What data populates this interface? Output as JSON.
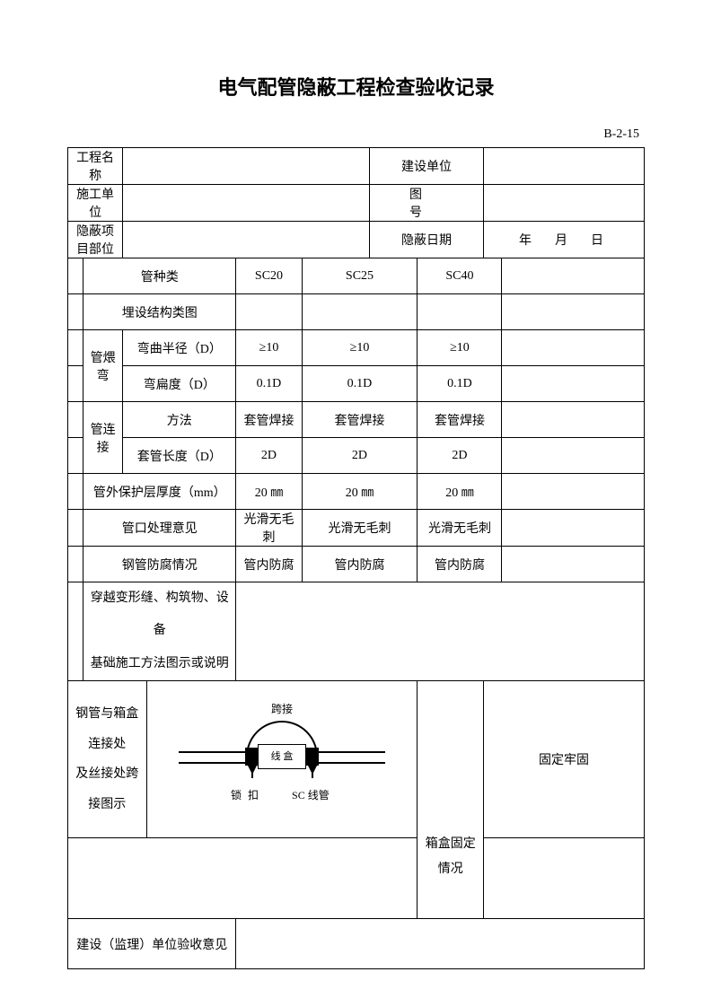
{
  "title": "电气配管隐蔽工程检查验收记录",
  "doc_code": "B-2-15",
  "header": {
    "project_name_label": "工程名称",
    "builder_label": "建设单位",
    "constructor_label": "施工单位",
    "drawing_no_label": "图　　号",
    "hidden_part_label": "隐蔽项目部位",
    "hidden_date_label": "隐蔽日期",
    "date_value": "年　月　日"
  },
  "cols": {
    "c1": "SC20",
    "c2": "SC25",
    "c3": "SC40"
  },
  "rows": {
    "pipe_type": "管种类",
    "buried_diagram": "埋设结构类图",
    "bend_group": "管煨弯",
    "bend_radius": "弯曲半径（D）",
    "bend_radius_v": "≥10",
    "bend_flat": "弯扁度（D）",
    "bend_flat_v": "0.1D",
    "conn_group": "管连接",
    "conn_method": "方法",
    "conn_method_v": "套管焊接",
    "sleeve_len": "套管长度（D）",
    "sleeve_len_v": "2D",
    "protect_thk": "管外保护层厚度（mm）",
    "protect_thk_v": "20 ㎜",
    "mouth": "管口处理意见",
    "mouth_v": "光滑无毛刺",
    "anticorr": "钢管防腐情况",
    "anticorr_v": "管内防腐",
    "crossing": "穿越变形缝、构筑物、设备<br>基础施工方法图示或说明",
    "connection_diagram": "钢管与箱盒连接处<br>及丝接处跨接图示",
    "box_fixed_label": "箱盒固定情况",
    "box_fixed_value": "固定牢固",
    "supervisor_opinion": "建设（监理）单位验收意见"
  },
  "diagram": {
    "kuajie": "跨接",
    "xianhe": "线 盒",
    "suokou": "锁 扣",
    "sc_pipe": "SC 线管"
  },
  "style": {
    "page_bg": "#ffffff",
    "text_color": "#000000",
    "border_color": "#000000",
    "title_fontsize": 22,
    "body_fontsize": 14,
    "diagram_fontsize": 12
  }
}
